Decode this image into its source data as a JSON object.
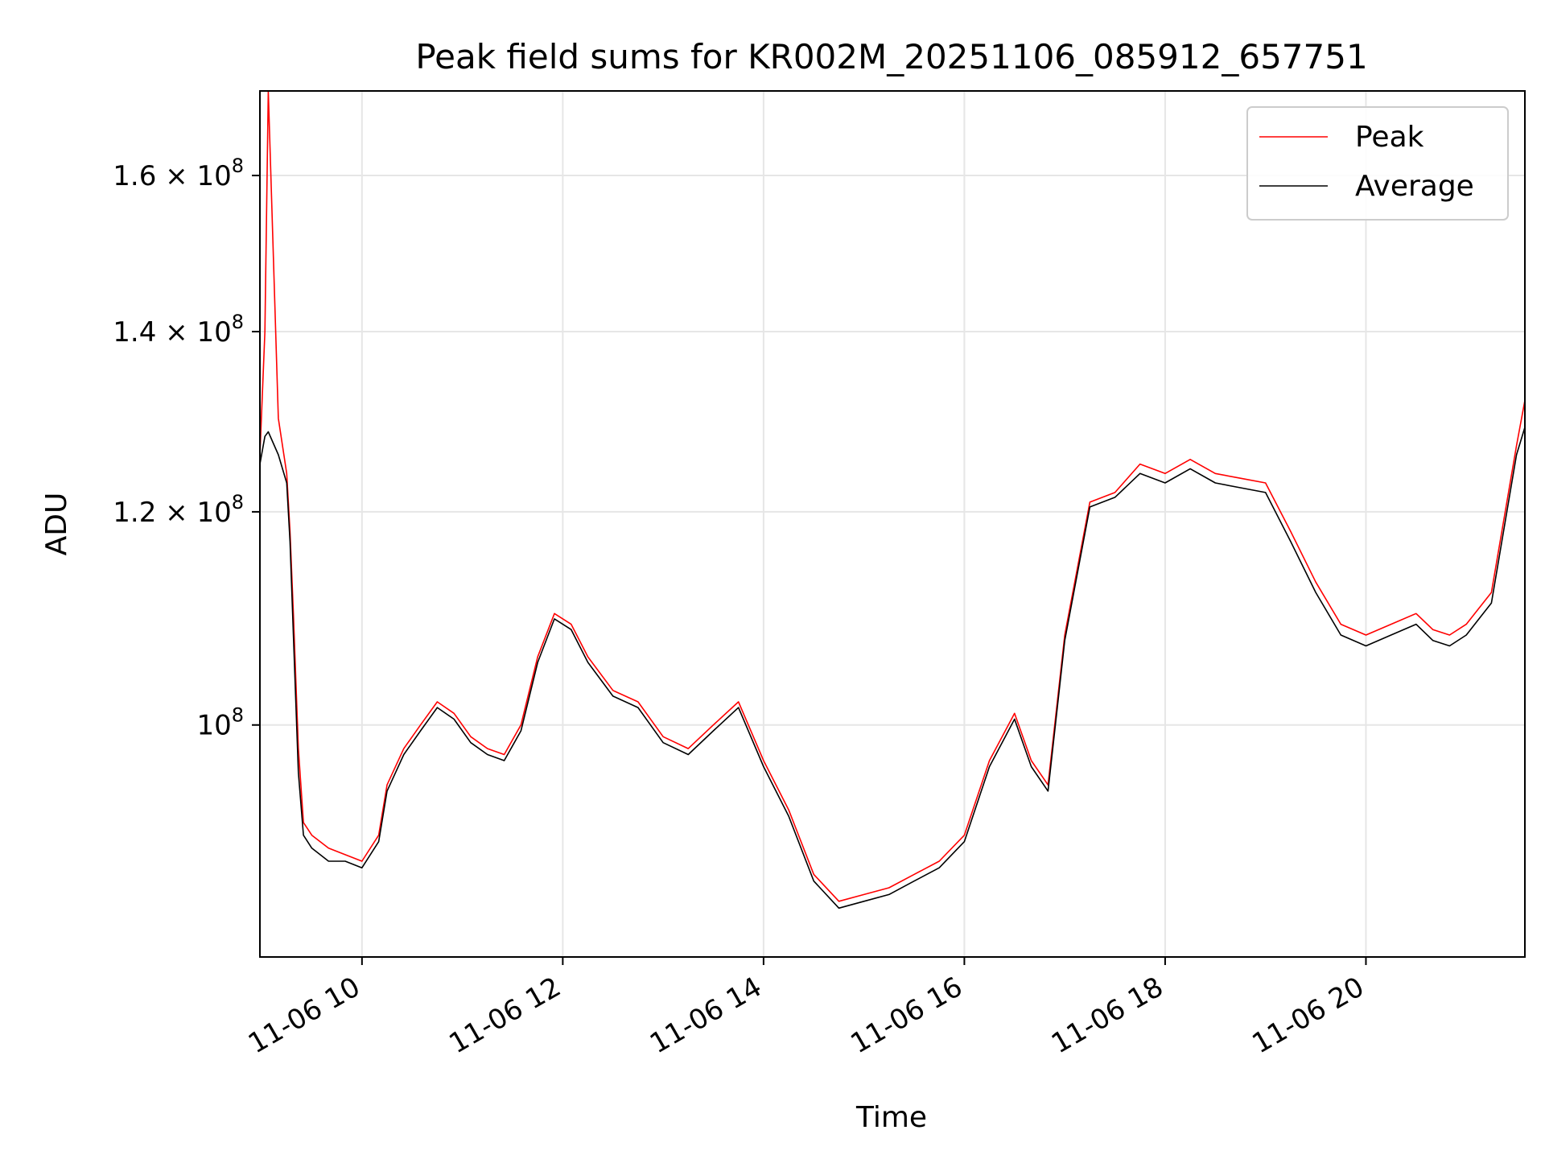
{
  "chart_data": {
    "type": "line",
    "title": "Peak field sums for KR002M_20251106_085912_657751",
    "xlabel": "Time",
    "ylabel": "ADU",
    "y_scale": "log",
    "grid": true,
    "legend_position": "top-right",
    "x_range": [
      "2025-11-06 08:59",
      "2025-11-06 21:35"
    ],
    "y_range": [
      82000000,
      172000000
    ],
    "x_ticks": [
      {
        "t": "2025-11-06 10:00",
        "label": "11-06 10"
      },
      {
        "t": "2025-11-06 12:00",
        "label": "11-06 12"
      },
      {
        "t": "2025-11-06 14:00",
        "label": "11-06 14"
      },
      {
        "t": "2025-11-06 16:00",
        "label": "11-06 16"
      },
      {
        "t": "2025-11-06 18:00",
        "label": "11-06 18"
      },
      {
        "t": "2025-11-06 20:00",
        "label": "11-06 20"
      }
    ],
    "y_ticks": [
      {
        "value": 100000000,
        "base": "10",
        "exp": "8",
        "mant": ""
      },
      {
        "value": 120000000,
        "base": "10",
        "exp": "8",
        "mant": "1.2 × "
      },
      {
        "value": 140000000,
        "base": "10",
        "exp": "8",
        "mant": "1.4 × "
      },
      {
        "value": 160000000,
        "base": "10",
        "exp": "8",
        "mant": "1.6 × "
      }
    ],
    "series": [
      {
        "name": "Peak",
        "color": "#ff0000",
        "x": [
          "2025-11-06 08:59",
          "2025-11-06 09:02",
          "2025-11-06 09:04",
          "2025-11-06 09:10",
          "2025-11-06 09:15",
          "2025-11-06 09:17",
          "2025-11-06 09:19",
          "2025-11-06 09:22",
          "2025-11-06 09:25",
          "2025-11-06 09:30",
          "2025-11-06 09:40",
          "2025-11-06 09:50",
          "2025-11-06 10:00",
          "2025-11-06 10:10",
          "2025-11-06 10:15",
          "2025-11-06 10:25",
          "2025-11-06 10:35",
          "2025-11-06 10:45",
          "2025-11-06 10:55",
          "2025-11-06 11:05",
          "2025-11-06 11:15",
          "2025-11-06 11:25",
          "2025-11-06 11:35",
          "2025-11-06 11:45",
          "2025-11-06 11:55",
          "2025-11-06 12:05",
          "2025-11-06 12:15",
          "2025-11-06 12:30",
          "2025-11-06 12:45",
          "2025-11-06 13:00",
          "2025-11-06 13:15",
          "2025-11-06 13:30",
          "2025-11-06 13:45",
          "2025-11-06 14:00",
          "2025-11-06 14:15",
          "2025-11-06 14:30",
          "2025-11-06 14:45",
          "2025-11-06 15:00",
          "2025-11-06 15:15",
          "2025-11-06 15:30",
          "2025-11-06 15:45",
          "2025-11-06 16:00",
          "2025-11-06 16:15",
          "2025-11-06 16:30",
          "2025-11-06 16:40",
          "2025-11-06 16:50",
          "2025-11-06 17:00",
          "2025-11-06 17:15",
          "2025-11-06 17:30",
          "2025-11-06 17:45",
          "2025-11-06 18:00",
          "2025-11-06 18:15",
          "2025-11-06 18:30",
          "2025-11-06 18:45",
          "2025-11-06 19:00",
          "2025-11-06 19:15",
          "2025-11-06 19:30",
          "2025-11-06 19:45",
          "2025-11-06 20:00",
          "2025-11-06 20:15",
          "2025-11-06 20:30",
          "2025-11-06 20:40",
          "2025-11-06 20:50",
          "2025-11-06 21:00",
          "2025-11-06 21:15",
          "2025-11-06 21:30",
          "2025-11-06 21:35"
        ],
        "y": [
          126000000,
          140000000,
          172000000,
          130000000,
          124000000,
          118000000,
          110000000,
          98000000,
          92000000,
          91000000,
          90000000,
          89500000,
          89000000,
          91000000,
          95000000,
          98000000,
          100000000,
          102000000,
          101000000,
          99000000,
          98000000,
          97500000,
          100000000,
          106000000,
          110000000,
          109000000,
          106000000,
          103000000,
          102000000,
          99000000,
          98000000,
          100000000,
          102000000,
          97000000,
          93000000,
          88000000,
          86000000,
          86500000,
          87000000,
          88000000,
          89000000,
          91000000,
          97000000,
          101000000,
          97000000,
          95000000,
          108000000,
          121000000,
          122000000,
          125000000,
          124000000,
          125500000,
          124000000,
          123500000,
          123000000,
          118000000,
          113000000,
          109000000,
          108000000,
          109000000,
          110000000,
          108500000,
          108000000,
          109000000,
          112000000,
          127000000,
          132000000
        ]
      },
      {
        "name": "Average",
        "color": "#000000",
        "x": [
          "2025-11-06 08:59",
          "2025-11-06 09:02",
          "2025-11-06 09:04",
          "2025-11-06 09:10",
          "2025-11-06 09:15",
          "2025-11-06 09:17",
          "2025-11-06 09:19",
          "2025-11-06 09:22",
          "2025-11-06 09:25",
          "2025-11-06 09:30",
          "2025-11-06 09:40",
          "2025-11-06 09:50",
          "2025-11-06 10:00",
          "2025-11-06 10:10",
          "2025-11-06 10:15",
          "2025-11-06 10:25",
          "2025-11-06 10:35",
          "2025-11-06 10:45",
          "2025-11-06 10:55",
          "2025-11-06 11:05",
          "2025-11-06 11:15",
          "2025-11-06 11:25",
          "2025-11-06 11:35",
          "2025-11-06 11:45",
          "2025-11-06 11:55",
          "2025-11-06 12:05",
          "2025-11-06 12:15",
          "2025-11-06 12:30",
          "2025-11-06 12:45",
          "2025-11-06 13:00",
          "2025-11-06 13:15",
          "2025-11-06 13:30",
          "2025-11-06 13:45",
          "2025-11-06 14:00",
          "2025-11-06 14:15",
          "2025-11-06 14:30",
          "2025-11-06 14:45",
          "2025-11-06 15:00",
          "2025-11-06 15:15",
          "2025-11-06 15:30",
          "2025-11-06 15:45",
          "2025-11-06 16:00",
          "2025-11-06 16:15",
          "2025-11-06 16:30",
          "2025-11-06 16:40",
          "2025-11-06 16:50",
          "2025-11-06 17:00",
          "2025-11-06 17:15",
          "2025-11-06 17:30",
          "2025-11-06 17:45",
          "2025-11-06 18:00",
          "2025-11-06 18:15",
          "2025-11-06 18:30",
          "2025-11-06 18:45",
          "2025-11-06 19:00",
          "2025-11-06 19:15",
          "2025-11-06 19:30",
          "2025-11-06 19:45",
          "2025-11-06 20:00",
          "2025-11-06 20:15",
          "2025-11-06 20:30",
          "2025-11-06 20:40",
          "2025-11-06 20:50",
          "2025-11-06 21:00",
          "2025-11-06 21:15",
          "2025-11-06 21:30",
          "2025-11-06 21:35"
        ],
        "y": [
          125000000,
          128000000,
          128500000,
          126000000,
          123000000,
          117000000,
          108000000,
          96000000,
          91000000,
          90000000,
          89000000,
          89000000,
          88500000,
          90500000,
          94500000,
          97500000,
          99500000,
          101500000,
          100500000,
          98500000,
          97500000,
          97000000,
          99500000,
          105500000,
          109500000,
          108500000,
          105500000,
          102500000,
          101500000,
          98500000,
          97500000,
          99500000,
          101500000,
          96500000,
          92500000,
          87500000,
          85500000,
          86000000,
          86500000,
          87500000,
          88500000,
          90500000,
          96500000,
          100500000,
          96500000,
          94500000,
          107500000,
          120500000,
          121500000,
          124000000,
          123000000,
          124500000,
          123000000,
          122500000,
          122000000,
          117000000,
          112000000,
          108000000,
          107000000,
          108000000,
          109000000,
          107500000,
          107000000,
          108000000,
          111000000,
          126000000,
          129000000
        ]
      }
    ]
  }
}
